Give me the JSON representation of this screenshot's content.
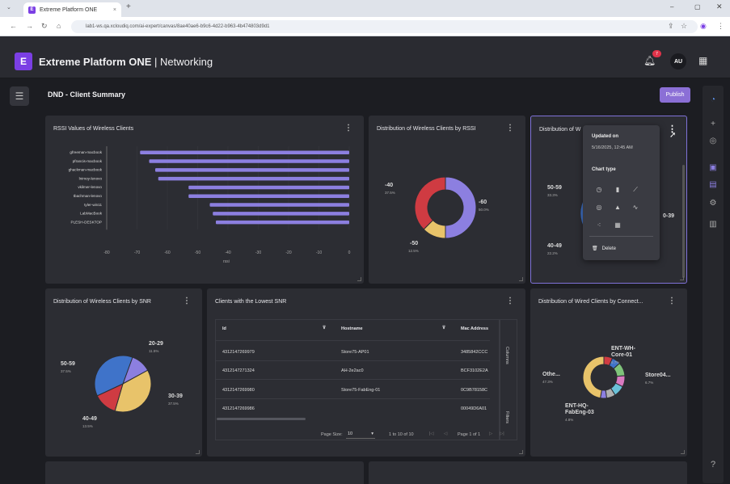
{
  "browser": {
    "tab_title": "Extreme Platform ONE",
    "new_tab_symbol": "+",
    "url": "lab1-ws.qa.xcloudiq.com/ai-expert/canvas/8ae40ae6-b9c6-4d22-b963-4b474803d9d1"
  },
  "app": {
    "brand_bold": "Extreme Platform ONE",
    "brand_section": " | Networking",
    "notification_count": "7",
    "user_initials": "AU"
  },
  "page": {
    "title": "DND - Client Summary",
    "publish_label": "Publish"
  },
  "rssi_chart": {
    "title": "RSSI Values of Wireless Clients",
    "xlabel": "rssi",
    "chart_data": {
      "type": "bar",
      "orientation": "horizontal",
      "categories": [
        "gfreeman-macbook",
        "pfrancis-macbook",
        "ghackman-macbook",
        "lnimoy-lenovo",
        "vkilmer-lenovo",
        "tbachman-lenovo",
        "tyler-win11",
        "LabMacBook",
        "PLESH-DESKTOP"
      ],
      "values": [
        -69,
        -66,
        -64,
        -63,
        -53,
        -53,
        -46,
        -45,
        -44
      ],
      "xlim": [
        -80,
        0
      ],
      "xticks": [
        "-80",
        "-70",
        "-60",
        "-50",
        "-40",
        "-30",
        "-20",
        "-10",
        "0"
      ],
      "color": "#8c7fe0"
    }
  },
  "rssi_dist": {
    "title": "Distribution of Wireless Clients by RSSI",
    "chart_data": {
      "type": "pie",
      "donut": true,
      "slices": [
        {
          "label": "-60",
          "pct": "50.0%",
          "value": 50.0,
          "color": "#8c7fe0"
        },
        {
          "label": "-50",
          "pct": "12.5%",
          "value": 12.5,
          "color": "#e8c36a"
        },
        {
          "label": "-40",
          "pct": "37.5%",
          "value": 37.5,
          "color": "#cf3b42"
        }
      ]
    }
  },
  "selected_card": {
    "title_visible": "Distribution of W",
    "labels": [
      {
        "label": "50-59",
        "pct": "33.3%"
      },
      {
        "label": "40-49",
        "pct": "22.2%"
      },
      {
        "label": "0-39",
        "pct": ""
      }
    ]
  },
  "popup": {
    "updated_label": "Updated on",
    "updated_value": "5/16/2025, 12:45 AM",
    "chart_type_label": "Chart type",
    "delete_label": "Delete"
  },
  "snr_dist": {
    "title": "Distribution of Wireless Clients by SNR",
    "chart_data": {
      "type": "pie",
      "donut": false,
      "slices": [
        {
          "label": "20-29",
          "pct": "11.5%",
          "value": 11.5,
          "color": "#8c7fe0"
        },
        {
          "label": "30-39",
          "pct": "37.5%",
          "value": 37.5,
          "color": "#e8c36a"
        },
        {
          "label": "40-49",
          "pct": "13.5%",
          "value": 13.5,
          "color": "#cf3b42"
        },
        {
          "label": "50-59",
          "pct": "37.5%",
          "value": 37.5,
          "color": "#3f73c9"
        }
      ]
    }
  },
  "low_snr": {
    "title": "Clients with the Lowest SNR",
    "columns": [
      "Id",
      "Hostname",
      "Mac Address"
    ],
    "rows": [
      [
        "4312147269979",
        "Store75-AP01",
        "3485842CCC"
      ],
      [
        "4312147271324",
        "AH-2e2ac0",
        "BCF3102E2A"
      ],
      [
        "4312147269980",
        "Store75-FabEng-01",
        "0C9B78158C"
      ],
      [
        "4312147269986",
        "",
        "00049D6A01"
      ]
    ],
    "side_columns": "Columns",
    "side_filters": "Filters",
    "page_size_label": "Page Size:",
    "page_size_value": "10",
    "range": "1 to 10 of 10",
    "page_info": "Page 1 of 1"
  },
  "wired_dist": {
    "title": "Distribution of Wired Clients by Connect...",
    "chart_data": {
      "type": "pie",
      "donut": true,
      "slices": [
        {
          "label": "Othe...",
          "pct": "47.3%",
          "value": 47.3,
          "color": "#e8c36a"
        },
        {
          "label": "ENT-WH-Core-01",
          "pct": "6.7%",
          "value": 6.7,
          "color": "#cf3b42"
        },
        {
          "label": "Store04...",
          "pct": "6.7%",
          "value": 6.7,
          "color": "#3f73c9"
        },
        {
          "label": "ENT-HQ-FabEng-03",
          "pct": "4.8%",
          "value": 4.8,
          "color": "#8c7fe0"
        }
      ]
    }
  }
}
